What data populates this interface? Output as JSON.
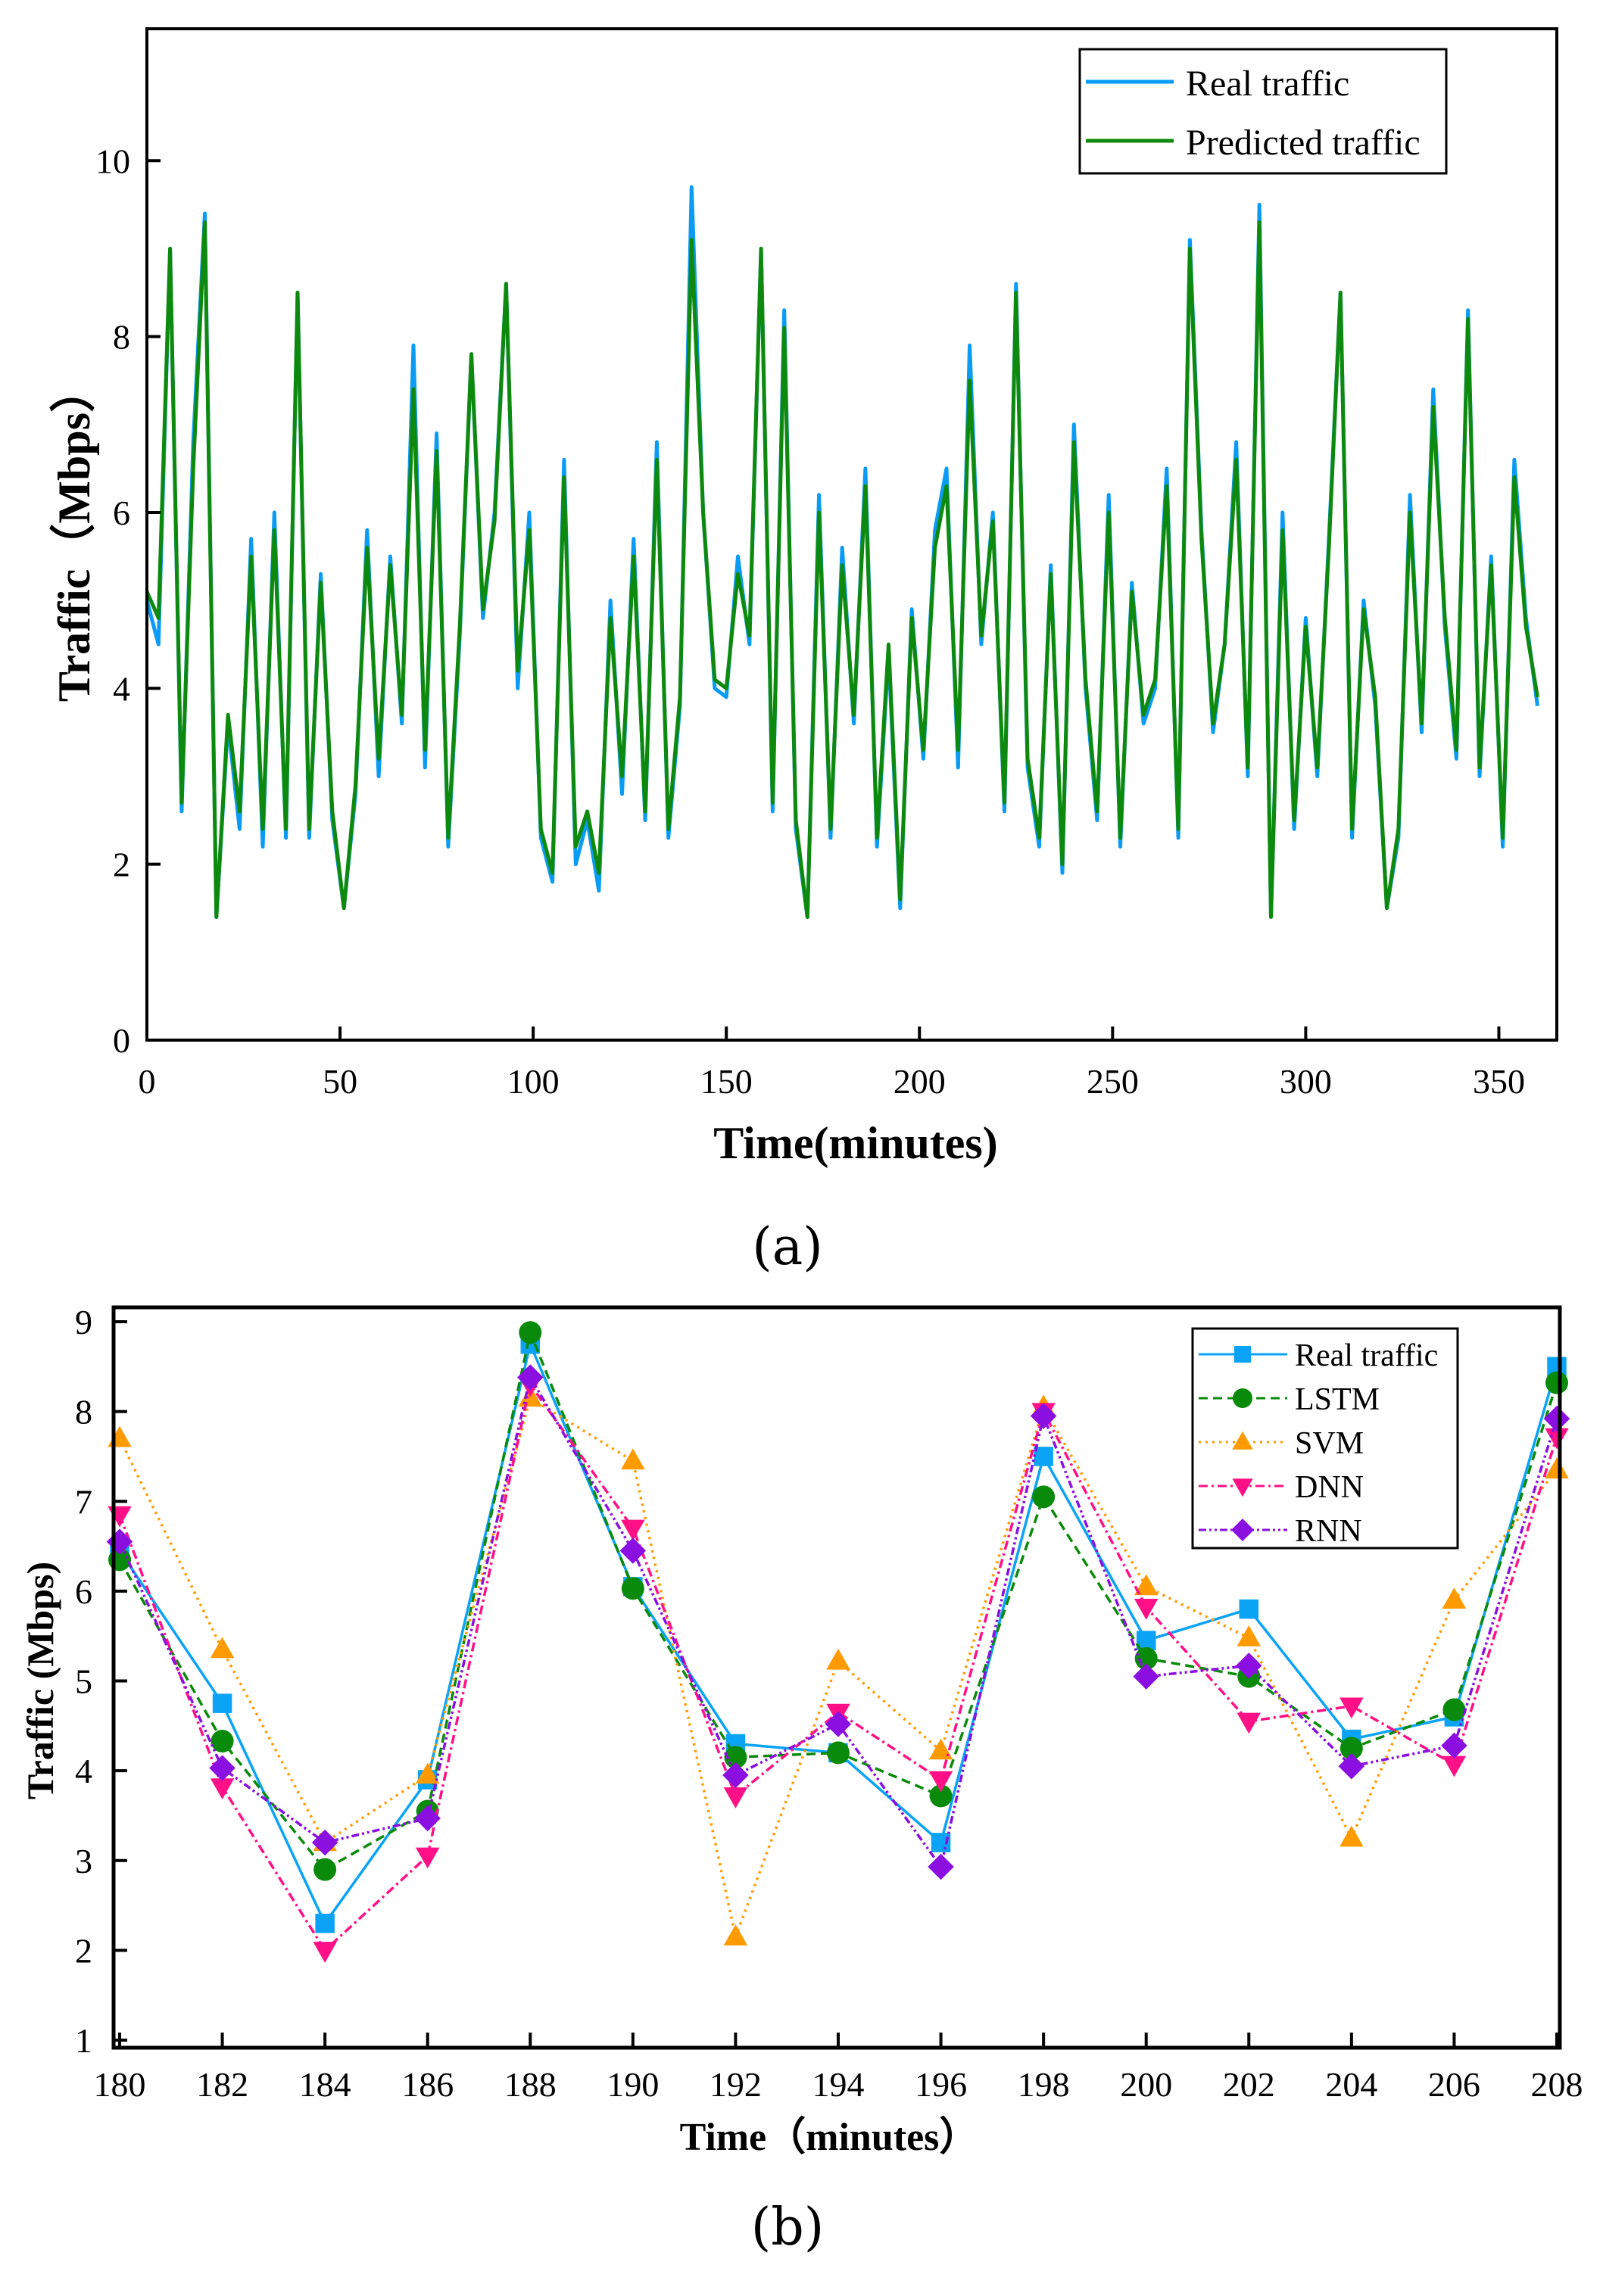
{
  "chart_data": [
    {
      "type": "line",
      "caption": "(a)",
      "xlabel": "Time(minutes)",
      "ylabel": "Traffic（Mbps）",
      "xlim": [
        0,
        365
      ],
      "ylim": [
        0,
        11.5
      ],
      "xticks": [
        "0",
        "50",
        "100",
        "150",
        "200",
        "250",
        "300",
        "350"
      ],
      "yticks": [
        "0",
        "2",
        "4",
        "6",
        "8",
        "10"
      ],
      "x_start": 0,
      "x_end": 360,
      "legend_position": "top-right",
      "series": [
        {
          "name": "Real traffic",
          "color": "#0a9bf5",
          "values": [
            5.0,
            4.5,
            9.0,
            2.6,
            6.8,
            9.4,
            1.4,
            3.6,
            2.4,
            5.7,
            2.2,
            6.0,
            2.3,
            8.5,
            2.3,
            5.3,
            2.5,
            1.5,
            2.8,
            5.8,
            3.0,
            5.5,
            3.6,
            7.9,
            3.1,
            6.9,
            2.2,
            4.6,
            7.8,
            4.8,
            6.0,
            8.6,
            4.0,
            6.0,
            2.3,
            1.8,
            6.6,
            2.0,
            2.5,
            1.7,
            5.0,
            2.8,
            5.7,
            2.5,
            6.8,
            2.3,
            3.8,
            9.7,
            6.0,
            4.0,
            3.9,
            5.5,
            4.5,
            9.0,
            2.6,
            8.3,
            2.4,
            1.4,
            6.2,
            2.3,
            5.6,
            3.6,
            6.5,
            2.2,
            4.4,
            1.5,
            4.9,
            3.2,
            5.8,
            6.5,
            3.1,
            7.9,
            4.5,
            6.0,
            2.6,
            8.6,
            3.1,
            2.2,
            5.4,
            1.9,
            7.0,
            4.0,
            2.5,
            6.2,
            2.2,
            5.2,
            3.6,
            4.0,
            6.5,
            2.3,
            9.1,
            5.8,
            3.5,
            4.5,
            6.8,
            3.0,
            9.5,
            1.4,
            6.0,
            2.4,
            4.8,
            3.0,
            5.7,
            8.5,
            2.3,
            5.0,
            3.8,
            1.5,
            2.3,
            6.2,
            3.5,
            7.4,
            4.7,
            3.2,
            8.3,
            3.0,
            5.5,
            2.2,
            6.6,
            4.8,
            3.8
          ]
        },
        {
          "name": "Predicted traffic",
          "color": "#0d8a0d",
          "values": [
            5.1,
            4.8,
            9.0,
            2.7,
            6.5,
            9.3,
            1.4,
            3.7,
            2.6,
            5.5,
            2.4,
            5.8,
            2.4,
            8.5,
            2.4,
            5.2,
            2.6,
            1.5,
            2.9,
            5.6,
            3.2,
            5.4,
            3.7,
            7.4,
            3.3,
            6.7,
            2.3,
            4.7,
            7.8,
            4.9,
            5.9,
            8.6,
            4.2,
            5.8,
            2.4,
            1.9,
            6.4,
            2.2,
            2.6,
            1.9,
            4.8,
            3.0,
            5.5,
            2.6,
            6.6,
            2.4,
            3.9,
            9.1,
            6.0,
            4.1,
            4.0,
            5.3,
            4.6,
            9.0,
            2.7,
            8.1,
            2.5,
            1.4,
            6.0,
            2.4,
            5.4,
            3.7,
            6.3,
            2.3,
            4.5,
            1.6,
            4.8,
            3.3,
            5.6,
            6.3,
            3.3,
            7.5,
            4.6,
            5.9,
            2.7,
            8.5,
            3.2,
            2.3,
            5.3,
            2.0,
            6.8,
            4.1,
            2.6,
            6.0,
            2.3,
            5.1,
            3.7,
            4.1,
            6.3,
            2.4,
            9.0,
            5.7,
            3.6,
            4.5,
            6.6,
            3.1,
            9.3,
            1.4,
            5.8,
            2.5,
            4.7,
            3.1,
            5.6,
            8.5,
            2.4,
            4.9,
            3.9,
            1.5,
            2.4,
            6.0,
            3.6,
            7.2,
            4.8,
            3.3,
            8.2,
            3.1,
            5.4,
            2.3,
            6.4,
            4.7,
            3.9
          ]
        }
      ]
    },
    {
      "type": "line",
      "caption": "(b)",
      "xlabel": "Time（minutes）",
      "ylabel": "Traffic (Mbps)",
      "x": [
        180,
        182,
        184,
        186,
        188,
        190,
        192,
        194,
        196,
        198,
        200,
        202,
        204,
        206,
        208
      ],
      "xlim": [
        180,
        208
      ],
      "ylim": [
        1,
        9
      ],
      "xticks": [
        "180",
        "182",
        "184",
        "186",
        "188",
        "190",
        "192",
        "194",
        "196",
        "198",
        "200",
        "202",
        "204",
        "206",
        "208"
      ],
      "yticks": [
        "1",
        "2",
        "3",
        "4",
        "5",
        "6",
        "7",
        "8",
        "9"
      ],
      "legend_position": "top-right",
      "series": [
        {
          "name": "Real traffic",
          "color": "#0aa3f5",
          "marker": "square",
          "dash": "",
          "values": [
            6.45,
            4.75,
            2.3,
            3.9,
            8.75,
            6.05,
            4.3,
            4.2,
            3.2,
            7.5,
            5.45,
            5.8,
            4.35,
            4.6,
            8.5
          ]
        },
        {
          "name": "LSTM",
          "color": "#0a8a0a",
          "marker": "circle",
          "dash": "12,7",
          "values": [
            6.35,
            4.33,
            2.9,
            3.55,
            8.88,
            6.03,
            4.15,
            4.2,
            3.72,
            7.05,
            5.25,
            5.05,
            4.25,
            4.68,
            8.32
          ]
        },
        {
          "name": "SVM",
          "color": "#ff9a00",
          "marker": "triangle-up",
          "dash": "3,6",
          "values": [
            7.7,
            5.35,
            3.2,
            3.95,
            8.15,
            7.45,
            2.15,
            5.22,
            4.22,
            8.05,
            6.05,
            5.48,
            3.25,
            5.9,
            7.35
          ]
        },
        {
          "name": "DNN",
          "color": "#ff1087",
          "marker": "triangle-down",
          "dash": "12,5,3,5",
          "values": [
            6.85,
            3.82,
            2.0,
            3.05,
            8.3,
            6.7,
            3.72,
            4.65,
            3.9,
            8.0,
            5.82,
            4.55,
            4.72,
            4.07,
            7.72
          ]
        },
        {
          "name": "RNN",
          "color": "#8a0fe0",
          "marker": "diamond",
          "dash": "10,4,3,4,3,4",
          "values": [
            6.55,
            4.03,
            3.2,
            3.47,
            8.38,
            6.45,
            3.95,
            4.52,
            2.93,
            7.95,
            5.05,
            5.17,
            4.05,
            4.28,
            7.92
          ]
        }
      ]
    }
  ]
}
